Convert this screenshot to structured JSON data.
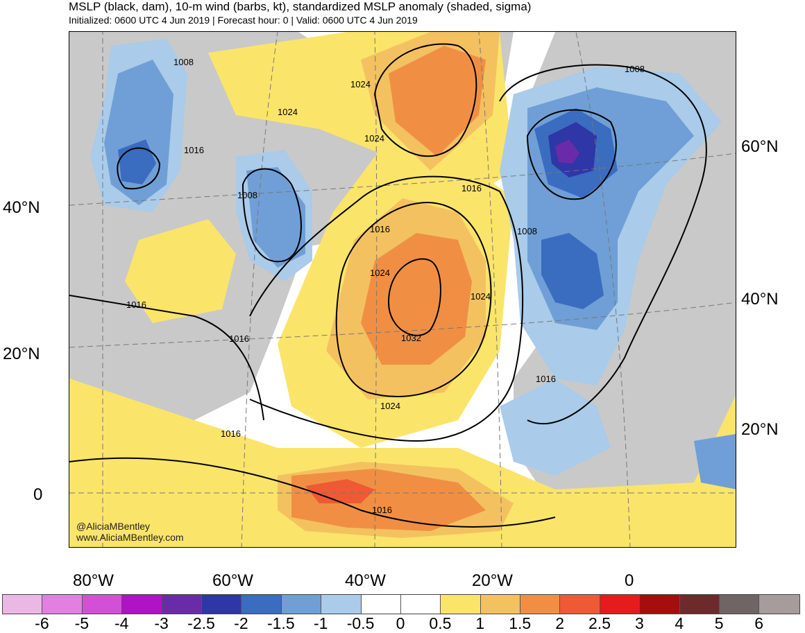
{
  "title": "MSLP (black, dam), 10-m wind (barbs, kt), standardized MSLP anomaly (shaded, sigma)",
  "subtitle": "Initialized: 0600 UTC 4 Jun 2019 | Forecast hour: 0 | Valid: 0600 UTC 4 Jun 2019",
  "credits": [
    "@AliciaMBentley",
    "www.AliciaMBentley.com"
  ],
  "lat_labels_left": [
    "40°N",
    "20°N",
    "0"
  ],
  "lat_labels_right": [
    "60°N",
    "40°N",
    "20°N"
  ],
  "lon_labels": [
    "80°W",
    "60°W",
    "40°W",
    "20°W",
    "0"
  ],
  "isobar_labels": [
    "1008",
    "1024",
    "1024",
    "1024",
    "1016",
    "1008",
    "1016",
    "1016",
    "1024",
    "1008",
    "1008",
    "1016",
    "1016",
    "1024",
    "1032",
    "1016",
    "1024",
    "1016",
    "1016"
  ],
  "colorbar": {
    "colors": [
      "#ebb8e6",
      "#e37fe0",
      "#d44fd8",
      "#b012c6",
      "#6a2ba8",
      "#2f36a6",
      "#3a6cc0",
      "#6f9fd6",
      "#aacbea",
      "#ffffff",
      "#ffffff",
      "#fbe46a",
      "#f4c160",
      "#f08f43",
      "#ee5a34",
      "#e41c1c",
      "#a60d0d",
      "#6e2a2a",
      "#6f6564",
      "#a59c9b"
    ],
    "labels": [
      "-6",
      "-5",
      "-4",
      "-3",
      "-2.5",
      "-2",
      "-1.5",
      "-1",
      "-0.5",
      "0",
      "0.5",
      "1",
      "1.5",
      "2",
      "2.5",
      "3",
      "4",
      "5",
      "6"
    ]
  }
}
